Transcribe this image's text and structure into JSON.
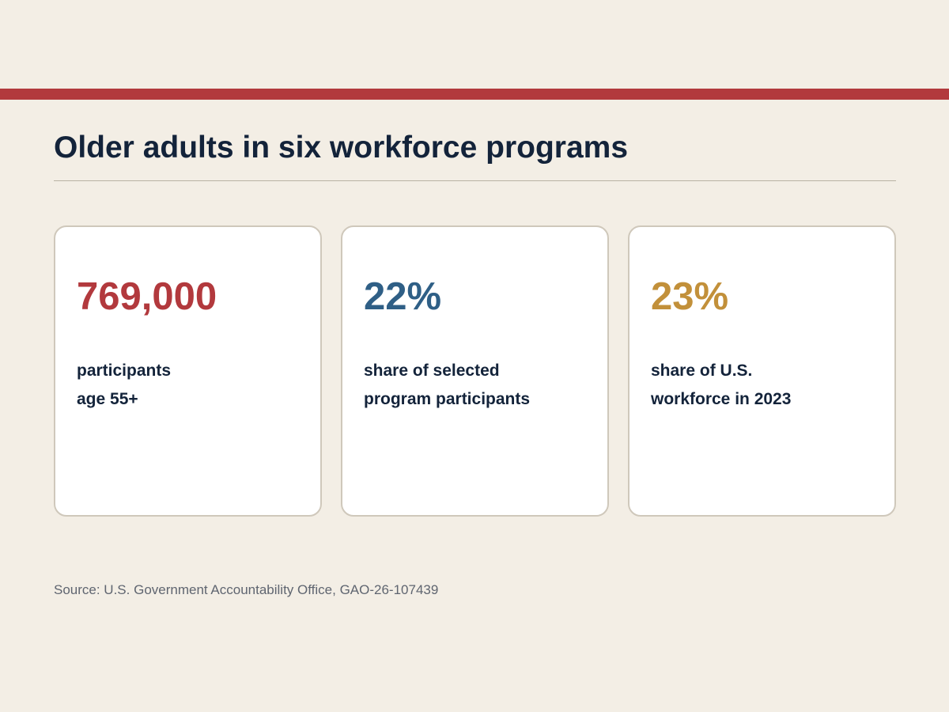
{
  "colors": {
    "accent_bar": "#b2393d",
    "card_values": [
      "#b2393d",
      "#2f5f86",
      "#c2903a"
    ]
  },
  "title": "Older adults in six workforce programs",
  "stats": [
    {
      "value": "769,000",
      "label_lines": [
        "participants",
        "age 55+"
      ]
    },
    {
      "value": "22%",
      "label_lines": [
        "share of selected",
        "program participants"
      ]
    },
    {
      "value": "23%",
      "label_lines": [
        "share of U.S.",
        "workforce in 2023"
      ]
    }
  ],
  "source": "Source: U.S. Government Accountability Office, GAO-26-107439"
}
